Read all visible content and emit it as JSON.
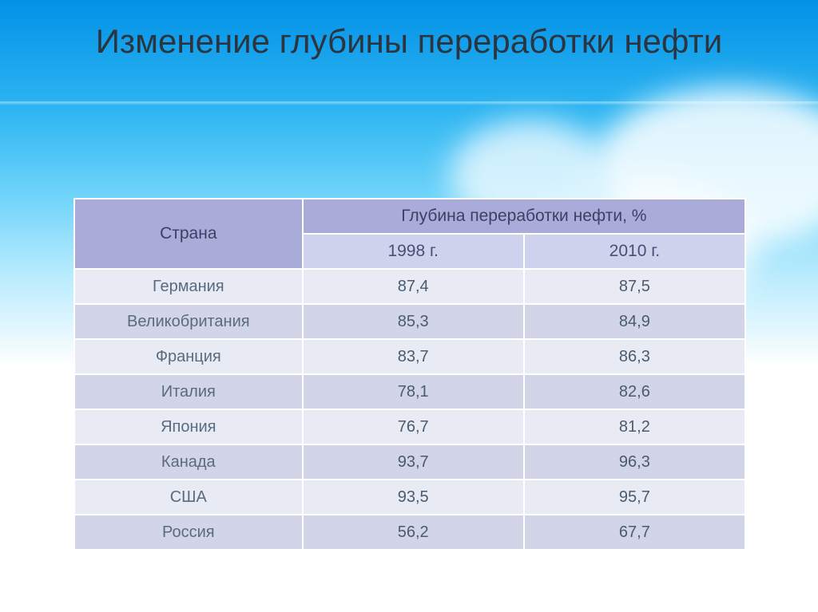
{
  "title": "Изменение глубины переработки нефти",
  "table": {
    "type": "table",
    "header": {
      "country_label": "Страна",
      "metric_label": "Глубина переработки нефти, %",
      "year1": "1998 г.",
      "year2": "2010 г."
    },
    "columns_width_pct": [
      34,
      33,
      33
    ],
    "header_bg": "#a9acd8",
    "subheader_bg": "#cfd2ec",
    "row_bg_odd": "#e8eaf4",
    "row_bg_even": "#d2d5e8",
    "border_color": "#ffffff",
    "text_color": "#4a5b6f",
    "font_size_pt": 15,
    "rows": [
      {
        "country": "Германия",
        "y1998": "87,4",
        "y2010": "87,5"
      },
      {
        "country": "Великобритания",
        "y1998": "85,3",
        "y2010": "84,9"
      },
      {
        "country": "Франция",
        "y1998": "83,7",
        "y2010": "86,3"
      },
      {
        "country": "Италия",
        "y1998": "78,1",
        "y2010": "82,6"
      },
      {
        "country": "Япония",
        "y1998": "76,7",
        "y2010": "81,2"
      },
      {
        "country": "Канада",
        "y1998": "93,7",
        "y2010": "96,3"
      },
      {
        "country": "США",
        "y1998": "93,5",
        "y2010": "95,7"
      },
      {
        "country": "Россия",
        "y1998": "56,2",
        "y2010": "67,7"
      }
    ]
  },
  "background": {
    "gradient_stops": [
      "#0291e6",
      "#2eb5f2",
      "#6fd4fa",
      "#b9ebfd",
      "#ffffff"
    ],
    "cloud_color": "#ffffff"
  }
}
